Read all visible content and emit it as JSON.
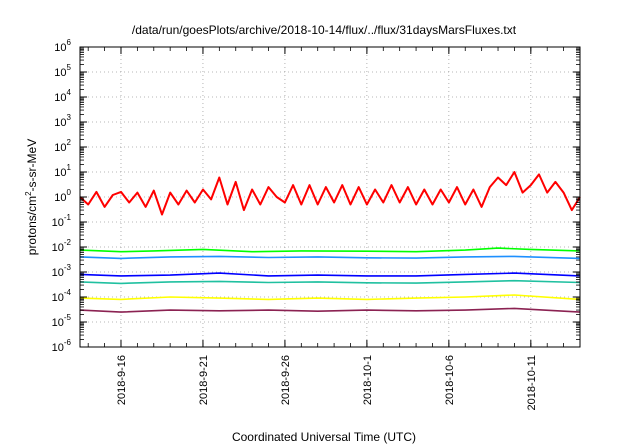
{
  "chart_data": {
    "type": "line",
    "title": "/data/run/goesPlots/archive/2018-10-14/flux/../flux/31daysMarsFluxes.txt",
    "xlabel": "Coordinated Universal Time (UTC)",
    "ylabel": "protons/cm2-s-sr-MeV",
    "ylabel_parts": {
      "before": "protons/cm",
      "sup": "2",
      "after": "-s-sr-MeV"
    },
    "yscale": "log",
    "ylim": [
      1e-06,
      1000000.0
    ],
    "xlim": [
      "2018-09-13T12:00",
      "2018-10-14T00:00"
    ],
    "grid": true,
    "x_ticks": [
      {
        "label": "2018-9-16",
        "date": "2018-09-16"
      },
      {
        "label": "2018-9-21",
        "date": "2018-09-21"
      },
      {
        "label": "2018-9-26",
        "date": "2018-09-26"
      },
      {
        "label": "2018-10-1",
        "date": "2018-10-01"
      },
      {
        "label": "2018-10-6",
        "date": "2018-10-06"
      },
      {
        "label": "2018-10-11",
        "date": "2018-10-11"
      }
    ],
    "y_ticks": [
      {
        "base": "10",
        "exp": "-6",
        "value": 1e-06
      },
      {
        "base": "10",
        "exp": "-5",
        "value": 1e-05
      },
      {
        "base": "10",
        "exp": "-4",
        "value": 0.0001
      },
      {
        "base": "10",
        "exp": "-3",
        "value": 0.001
      },
      {
        "base": "10",
        "exp": "-2",
        "value": 0.01
      },
      {
        "base": "10",
        "exp": "-1",
        "value": 0.1
      },
      {
        "base": "10",
        "exp": "0",
        "value": 1
      },
      {
        "base": "10",
        "exp": "1",
        "value": 10
      },
      {
        "base": "10",
        "exp": "2",
        "value": 100
      },
      {
        "base": "10",
        "exp": "3",
        "value": 1000
      },
      {
        "base": "10",
        "exp": "4",
        "value": 10000
      },
      {
        "base": "10",
        "exp": "5",
        "value": 100000
      },
      {
        "base": "10",
        "exp": "6",
        "value": 1000000
      }
    ],
    "series": [
      {
        "color": "#ff0000",
        "points": [
          [
            "2018-09-13T12:00",
            1.0
          ],
          [
            "2018-09-14T00:00",
            0.5
          ],
          [
            "2018-09-14T12:00",
            1.6
          ],
          [
            "2018-09-15T00:00",
            0.4
          ],
          [
            "2018-09-15T12:00",
            1.2
          ],
          [
            "2018-09-16T00:00",
            1.6
          ],
          [
            "2018-09-16T12:00",
            0.6
          ],
          [
            "2018-09-17T00:00",
            1.5
          ],
          [
            "2018-09-17T12:00",
            0.4
          ],
          [
            "2018-09-18T00:00",
            1.8
          ],
          [
            "2018-09-18T12:00",
            0.2
          ],
          [
            "2018-09-19T00:00",
            1.5
          ],
          [
            "2018-09-19T12:00",
            0.5
          ],
          [
            "2018-09-20T00:00",
            1.8
          ],
          [
            "2018-09-20T12:00",
            0.6
          ],
          [
            "2018-09-21T00:00",
            2.0
          ],
          [
            "2018-09-21T12:00",
            0.8
          ],
          [
            "2018-09-22T00:00",
            6.0
          ],
          [
            "2018-09-22T12:00",
            0.5
          ],
          [
            "2018-09-23T00:00",
            4.0
          ],
          [
            "2018-09-23T12:00",
            0.3
          ],
          [
            "2018-09-24T00:00",
            2.0
          ],
          [
            "2018-09-24T12:00",
            0.5
          ],
          [
            "2018-09-25T00:00",
            2.5
          ],
          [
            "2018-09-25T12:00",
            1.0
          ],
          [
            "2018-09-26T00:00",
            0.6
          ],
          [
            "2018-09-26T12:00",
            3.0
          ],
          [
            "2018-09-27T00:00",
            0.5
          ],
          [
            "2018-09-27T12:00",
            3.0
          ],
          [
            "2018-09-28T00:00",
            0.5
          ],
          [
            "2018-09-28T12:00",
            2.5
          ],
          [
            "2018-09-29T00:00",
            0.6
          ],
          [
            "2018-09-29T12:00",
            3.0
          ],
          [
            "2018-09-30T00:00",
            0.5
          ],
          [
            "2018-09-30T12:00",
            2.5
          ],
          [
            "2018-10-01T00:00",
            0.5
          ],
          [
            "2018-10-01T12:00",
            2.0
          ],
          [
            "2018-10-02T00:00",
            0.6
          ],
          [
            "2018-10-02T12:00",
            3.0
          ],
          [
            "2018-10-03T00:00",
            0.6
          ],
          [
            "2018-10-03T12:00",
            2.5
          ],
          [
            "2018-10-04T00:00",
            0.5
          ],
          [
            "2018-10-04T12:00",
            2.0
          ],
          [
            "2018-10-05T00:00",
            0.5
          ],
          [
            "2018-10-05T12:00",
            2.0
          ],
          [
            "2018-10-06T00:00",
            0.6
          ],
          [
            "2018-10-06T12:00",
            2.5
          ],
          [
            "2018-10-07T00:00",
            0.5
          ],
          [
            "2018-10-07T12:00",
            2.0
          ],
          [
            "2018-10-08T00:00",
            0.4
          ],
          [
            "2018-10-08T12:00",
            2.5
          ],
          [
            "2018-10-09T00:00",
            6.0
          ],
          [
            "2018-10-09T12:00",
            3.0
          ],
          [
            "2018-10-10T00:00",
            10.0
          ],
          [
            "2018-10-10T12:00",
            1.5
          ],
          [
            "2018-10-11T00:00",
            3.0
          ],
          [
            "2018-10-11T12:00",
            8.0
          ],
          [
            "2018-10-12T00:00",
            1.5
          ],
          [
            "2018-10-12T12:00",
            4.0
          ],
          [
            "2018-10-13T00:00",
            1.5
          ],
          [
            "2018-10-13T12:00",
            0.3
          ],
          [
            "2018-10-14T00:00",
            1.0
          ]
        ]
      },
      {
        "color": "#00ff00",
        "points": [
          [
            "2018-09-13T12:00",
            0.0075
          ],
          [
            "2018-09-16T00:00",
            0.0065
          ],
          [
            "2018-09-18T00:00",
            0.007
          ],
          [
            "2018-09-21T00:00",
            0.008
          ],
          [
            "2018-09-24T00:00",
            0.0065
          ],
          [
            "2018-09-27T00:00",
            0.007
          ],
          [
            "2018-10-01T00:00",
            0.0068
          ],
          [
            "2018-10-04T00:00",
            0.0065
          ],
          [
            "2018-10-07T00:00",
            0.0075
          ],
          [
            "2018-10-09T00:00",
            0.009
          ],
          [
            "2018-10-11T00:00",
            0.008
          ],
          [
            "2018-10-14T00:00",
            0.007
          ]
        ]
      },
      {
        "color": "#1e90ff",
        "points": [
          [
            "2018-09-13T12:00",
            0.004
          ],
          [
            "2018-09-16T00:00",
            0.0035
          ],
          [
            "2018-09-19T00:00",
            0.004
          ],
          [
            "2018-09-22T00:00",
            0.0042
          ],
          [
            "2018-09-25T00:00",
            0.0038
          ],
          [
            "2018-09-28T00:00",
            0.004
          ],
          [
            "2018-10-01T00:00",
            0.0037
          ],
          [
            "2018-10-04T00:00",
            0.0036
          ],
          [
            "2018-10-07T00:00",
            0.004
          ],
          [
            "2018-10-10T00:00",
            0.0042
          ],
          [
            "2018-10-14T00:00",
            0.0035
          ]
        ]
      },
      {
        "color": "#0000ff",
        "points": [
          [
            "2018-09-13T12:00",
            0.0008
          ],
          [
            "2018-09-16T00:00",
            0.0007
          ],
          [
            "2018-09-19T00:00",
            0.00075
          ],
          [
            "2018-09-22T00:00",
            0.0009
          ],
          [
            "2018-09-25T00:00",
            0.0007
          ],
          [
            "2018-09-28T00:00",
            0.00075
          ],
          [
            "2018-10-01T00:00",
            0.0007
          ],
          [
            "2018-10-04T00:00",
            0.0007
          ],
          [
            "2018-10-07T00:00",
            0.0008
          ],
          [
            "2018-10-10T00:00",
            0.0009
          ],
          [
            "2018-10-14T00:00",
            0.0007
          ]
        ]
      },
      {
        "color": "#20c0a0",
        "points": [
          [
            "2018-09-13T12:00",
            0.0004
          ],
          [
            "2018-09-16T00:00",
            0.00035
          ],
          [
            "2018-09-19T00:00",
            0.0004
          ],
          [
            "2018-09-22T00:00",
            0.00042
          ],
          [
            "2018-09-25T00:00",
            0.00038
          ],
          [
            "2018-09-28T00:00",
            0.0004
          ],
          [
            "2018-10-01T00:00",
            0.00037
          ],
          [
            "2018-10-04T00:00",
            0.00036
          ],
          [
            "2018-10-07T00:00",
            0.0004
          ],
          [
            "2018-10-10T00:00",
            0.00045
          ],
          [
            "2018-10-14T00:00",
            0.00038
          ]
        ]
      },
      {
        "color": "#ffff00",
        "points": [
          [
            "2018-09-13T12:00",
            9e-05
          ],
          [
            "2018-09-16T00:00",
            8e-05
          ],
          [
            "2018-09-19T00:00",
            0.0001
          ],
          [
            "2018-09-22T00:00",
            9e-05
          ],
          [
            "2018-09-25T00:00",
            8e-05
          ],
          [
            "2018-09-28T00:00",
            9e-05
          ],
          [
            "2018-10-01T00:00",
            8e-05
          ],
          [
            "2018-10-04T00:00",
            9e-05
          ],
          [
            "2018-10-07T00:00",
            0.0001
          ],
          [
            "2018-10-10T00:00",
            0.00012
          ],
          [
            "2018-10-14T00:00",
            8e-05
          ]
        ]
      },
      {
        "color": "#8b2252",
        "points": [
          [
            "2018-09-13T12:00",
            3e-05
          ],
          [
            "2018-09-16T00:00",
            2.5e-05
          ],
          [
            "2018-09-19T00:00",
            3e-05
          ],
          [
            "2018-09-22T00:00",
            2.8e-05
          ],
          [
            "2018-09-25T00:00",
            3e-05
          ],
          [
            "2018-09-28T00:00",
            2.7e-05
          ],
          [
            "2018-10-01T00:00",
            3e-05
          ],
          [
            "2018-10-04T00:00",
            2.8e-05
          ],
          [
            "2018-10-07T00:00",
            3e-05
          ],
          [
            "2018-10-10T00:00",
            3.5e-05
          ],
          [
            "2018-10-14T00:00",
            2.5e-05
          ]
        ]
      }
    ]
  }
}
